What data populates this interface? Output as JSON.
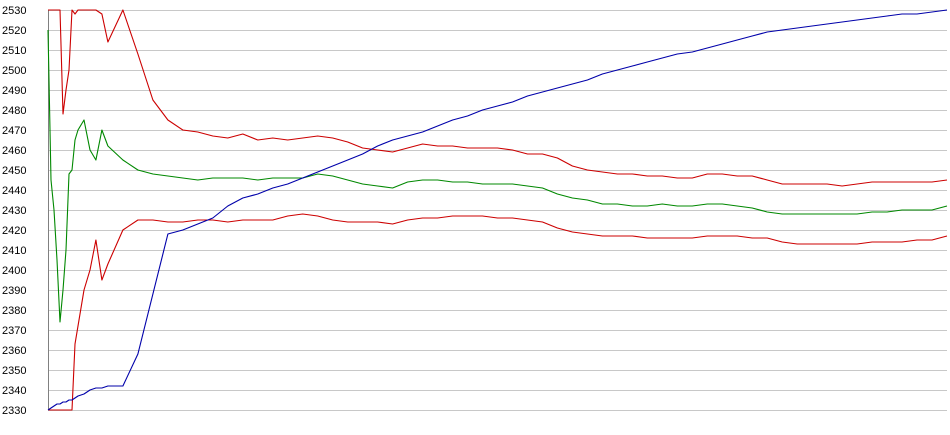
{
  "chart_data": {
    "type": "line",
    "title": "",
    "xlabel": "",
    "ylabel": "",
    "ylim": [
      2330,
      2530
    ],
    "yticks": [
      2330,
      2340,
      2350,
      2360,
      2370,
      2380,
      2390,
      2400,
      2410,
      2420,
      2430,
      2440,
      2450,
      2460,
      2470,
      2480,
      2490,
      2500,
      2510,
      2520,
      2530
    ],
    "ytick_labels": [
      "2330",
      "2340",
      "2350",
      "2360",
      "2370",
      "2380",
      "2390",
      "2400",
      "2410",
      "2420",
      "2430",
      "2440",
      "2450",
      "2460",
      "2470",
      "2480",
      "2490",
      "2500",
      "2510",
      "2520",
      "2530"
    ],
    "grid": true,
    "legend": "none",
    "x": [
      0,
      1,
      2,
      3,
      4,
      5,
      6,
      7,
      8,
      9,
      10,
      12,
      14,
      16,
      18,
      20,
      25,
      30,
      35,
      40,
      45,
      50,
      55,
      60,
      65,
      70,
      75,
      80,
      85,
      90,
      95,
      100,
      105,
      110,
      115,
      120,
      125,
      130,
      135,
      140,
      145,
      150,
      155,
      160,
      165,
      170,
      175,
      180,
      185,
      190,
      195,
      200,
      205,
      210,
      215,
      220,
      225,
      230,
      235,
      240,
      245,
      250,
      255,
      260,
      265,
      270,
      275,
      280,
      285,
      290,
      295,
      300
    ],
    "series": [
      {
        "color": "#cc0000",
        "values": [
          2530,
          2530,
          2530,
          2530,
          2530,
          2478,
          2490,
          2500,
          2530,
          2528,
          2530,
          2530,
          2530,
          2530,
          2528,
          2514,
          2530,
          2508,
          2485,
          2475,
          2470,
          2469,
          2467,
          2466,
          2468,
          2465,
          2466,
          2465,
          2466,
          2467,
          2466,
          2464,
          2461,
          2460,
          2459,
          2461,
          2463,
          2462,
          2462,
          2461,
          2461,
          2461,
          2460,
          2458,
          2458,
          2456,
          2452,
          2450,
          2449,
          2448,
          2448,
          2447,
          2447,
          2446,
          2446,
          2448,
          2448,
          2447,
          2447,
          2445,
          2443,
          2443,
          2443,
          2443,
          2442,
          2443,
          2444,
          2444,
          2444,
          2444,
          2444,
          2445
        ]
      },
      {
        "color": "#008800",
        "values": [
          2520,
          2445,
          2430,
          2405,
          2374,
          2390,
          2410,
          2448,
          2450,
          2465,
          2470,
          2475,
          2460,
          2455,
          2470,
          2462,
          2455,
          2450,
          2448,
          2447,
          2446,
          2445,
          2446,
          2446,
          2446,
          2445,
          2446,
          2446,
          2446,
          2448,
          2447,
          2445,
          2443,
          2442,
          2441,
          2444,
          2445,
          2445,
          2444,
          2444,
          2443,
          2443,
          2443,
          2442,
          2441,
          2438,
          2436,
          2435,
          2433,
          2433,
          2432,
          2432,
          2433,
          2432,
          2432,
          2433,
          2433,
          2432,
          2431,
          2429,
          2428,
          2428,
          2428,
          2428,
          2428,
          2428,
          2429,
          2429,
          2430,
          2430,
          2430,
          2432
        ]
      },
      {
        "color": "#cc0000",
        "values": [
          2330,
          2330,
          2330,
          2330,
          2330,
          2330,
          2330,
          2330,
          2330,
          2363,
          2372,
          2390,
          2400,
          2415,
          2395,
          2403,
          2420,
          2425,
          2425,
          2424,
          2424,
          2425,
          2425,
          2424,
          2425,
          2425,
          2425,
          2427,
          2428,
          2427,
          2425,
          2424,
          2424,
          2424,
          2423,
          2425,
          2426,
          2426,
          2427,
          2427,
          2427,
          2426,
          2426,
          2425,
          2424,
          2421,
          2419,
          2418,
          2417,
          2417,
          2417,
          2416,
          2416,
          2416,
          2416,
          2417,
          2417,
          2417,
          2416,
          2416,
          2414,
          2413,
          2413,
          2413,
          2413,
          2413,
          2414,
          2414,
          2414,
          2415,
          2415,
          2417
        ]
      },
      {
        "color": "#0000aa",
        "values": [
          2330,
          2331,
          2332,
          2333,
          2333,
          2334,
          2334,
          2335,
          2335,
          2336,
          2337,
          2338,
          2340,
          2341,
          2341,
          2342,
          2342,
          2358,
          2388,
          2418,
          2420,
          2423,
          2426,
          2432,
          2436,
          2438,
          2441,
          2443,
          2446,
          2449,
          2452,
          2455,
          2458,
          2462,
          2465,
          2467,
          2469,
          2472,
          2475,
          2477,
          2480,
          2482,
          2484,
          2487,
          2489,
          2491,
          2493,
          2495,
          2498,
          2500,
          2502,
          2504,
          2506,
          2508,
          2509,
          2511,
          2513,
          2515,
          2517,
          2519,
          2520,
          2521,
          2522,
          2523,
          2524,
          2525,
          2526,
          2527,
          2528,
          2528,
          2529,
          2530
        ]
      }
    ]
  }
}
